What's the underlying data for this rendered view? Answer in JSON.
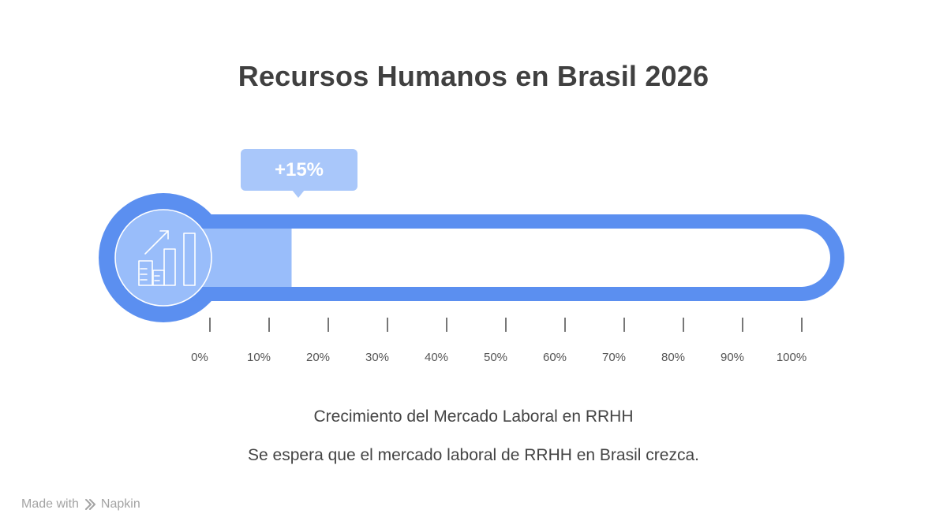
{
  "title": "Recursos Humanos en Brasil 2026",
  "chart_data": {
    "type": "bar",
    "orientation": "horizontal",
    "value": 15,
    "value_label": "+15%",
    "xlim": [
      0,
      100
    ],
    "ticks": [
      0,
      10,
      20,
      30,
      40,
      50,
      60,
      70,
      80,
      90,
      100
    ],
    "tick_labels": [
      "0%",
      "10%",
      "20%",
      "30%",
      "40%",
      "50%",
      "60%",
      "70%",
      "80%",
      "90%",
      "100%"
    ],
    "colors": {
      "outline": "#5b8ff0",
      "fill": "#99bdfa",
      "badge": "#a9c7fa",
      "tick": "#555555"
    }
  },
  "icon": "growth-chart-icon",
  "caption": {
    "heading": "Crecimiento del Mercado Laboral en RRHH",
    "description": "Se espera que el mercado laboral de RRHH en Brasil crezca."
  },
  "footer": {
    "made_with": "Made with",
    "brand": "Napkin",
    "icon": "napkin-logo-icon"
  }
}
